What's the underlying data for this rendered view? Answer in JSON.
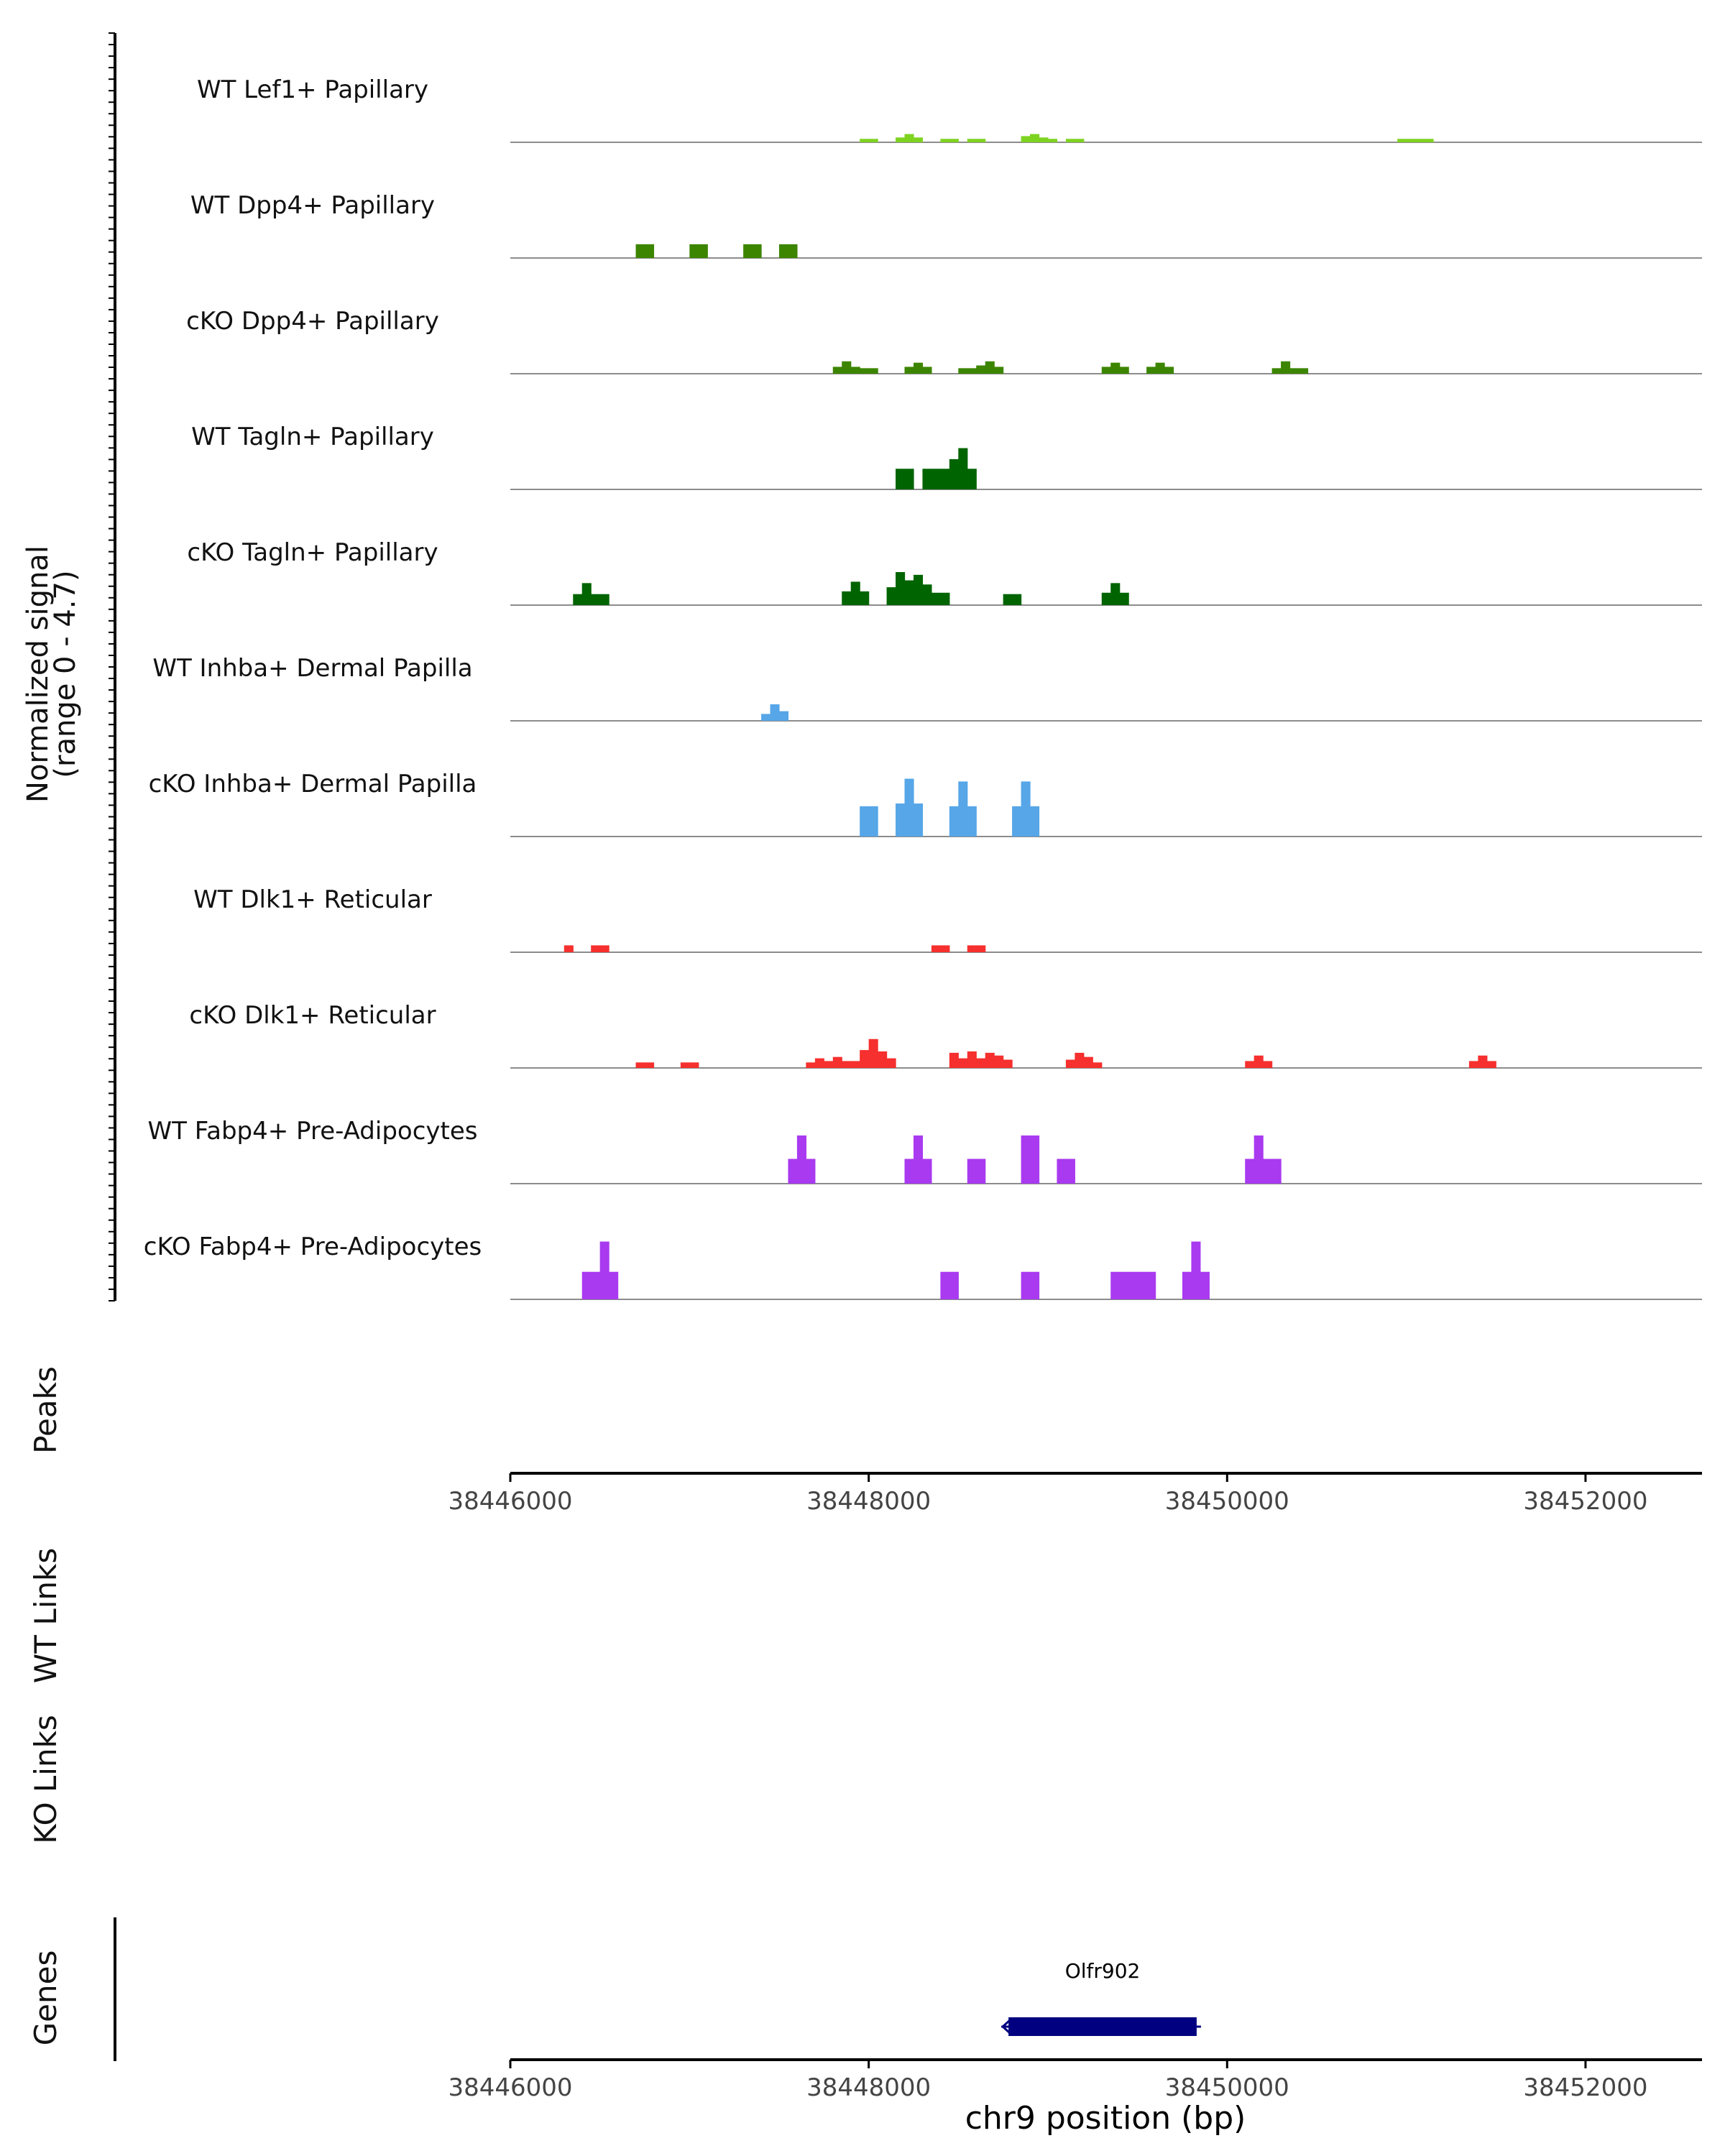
{
  "chart_data": {
    "type": "area",
    "x_unit": "bp",
    "xlim": [
      38446000,
      38452650
    ],
    "x_ticks": [
      38446000,
      38448000,
      38450000,
      38452000
    ],
    "x_tick_labels": [
      "38446000",
      "38448000",
      "38450000",
      "38452000"
    ],
    "xlabel": "chr9 position (bp)",
    "ylabel_line1": "Normalized signal",
    "ylabel_line2": "(range 0 - 4.7)",
    "ylim": [
      0,
      4.7
    ],
    "tracks": [
      {
        "name": "WT Lef1+ Papillary",
        "color": "#7ED321",
        "bins": [
          [
            38447950,
            38448050,
            0.25
          ],
          [
            38448150,
            38448200,
            0.35
          ],
          [
            38448200,
            38448250,
            0.6
          ],
          [
            38448250,
            38448300,
            0.35
          ],
          [
            38448400,
            38448500,
            0.25
          ],
          [
            38448550,
            38448650,
            0.25
          ],
          [
            38448850,
            38448900,
            0.45
          ],
          [
            38448900,
            38448950,
            0.6
          ],
          [
            38448950,
            38449000,
            0.35
          ],
          [
            38449000,
            38449050,
            0.25
          ],
          [
            38449100,
            38449200,
            0.25
          ],
          [
            38450950,
            38451050,
            0.25
          ],
          [
            38451050,
            38451150,
            0.25
          ]
        ]
      },
      {
        "name": "WT Dpp4+ Papillary",
        "color": "#3C8500",
        "bins": [
          [
            38446700,
            38446800,
            1.0
          ],
          [
            38447000,
            38447100,
            1.0
          ],
          [
            38447300,
            38447400,
            1.0
          ],
          [
            38447500,
            38447600,
            1.0
          ]
        ]
      },
      {
        "name": "cKO Dpp4+ Papillary",
        "color": "#3C8500",
        "bins": [
          [
            38447800,
            38447850,
            0.5
          ],
          [
            38447850,
            38447900,
            0.9
          ],
          [
            38447900,
            38447950,
            0.5
          ],
          [
            38447950,
            38448050,
            0.4
          ],
          [
            38448200,
            38448250,
            0.5
          ],
          [
            38448250,
            38448300,
            0.8
          ],
          [
            38448300,
            38448350,
            0.5
          ],
          [
            38448500,
            38448600,
            0.4
          ],
          [
            38448600,
            38448650,
            0.6
          ],
          [
            38448650,
            38448700,
            0.9
          ],
          [
            38448700,
            38448750,
            0.5
          ],
          [
            38449300,
            38449350,
            0.5
          ],
          [
            38449350,
            38449400,
            0.8
          ],
          [
            38449400,
            38449450,
            0.5
          ],
          [
            38449550,
            38449600,
            0.5
          ],
          [
            38449600,
            38449650,
            0.8
          ],
          [
            38449650,
            38449700,
            0.5
          ],
          [
            38450250,
            38450300,
            0.4
          ],
          [
            38450300,
            38450350,
            0.9
          ],
          [
            38450350,
            38450450,
            0.4
          ]
        ]
      },
      {
        "name": "WT Tagln+ Papillary",
        "color": "#006400",
        "bins": [
          [
            38448150,
            38448250,
            1.5
          ],
          [
            38448300,
            38448400,
            1.5
          ],
          [
            38448400,
            38448450,
            1.5
          ],
          [
            38448450,
            38448500,
            2.2
          ],
          [
            38448500,
            38448550,
            3.0
          ],
          [
            38448550,
            38448600,
            1.5
          ]
        ]
      },
      {
        "name": "cKO Tagln+ Papillary",
        "color": "#006400",
        "bins": [
          [
            38446350,
            38446400,
            0.8
          ],
          [
            38446400,
            38446450,
            1.6
          ],
          [
            38446450,
            38446550,
            0.8
          ],
          [
            38447850,
            38447900,
            1.0
          ],
          [
            38447900,
            38447950,
            1.7
          ],
          [
            38447950,
            38448000,
            1.0
          ],
          [
            38448100,
            38448150,
            1.3
          ],
          [
            38448150,
            38448200,
            2.4
          ],
          [
            38448200,
            38448250,
            1.8
          ],
          [
            38448250,
            38448300,
            2.2
          ],
          [
            38448300,
            38448350,
            1.5
          ],
          [
            38448350,
            38448400,
            0.9
          ],
          [
            38448400,
            38448450,
            0.9
          ],
          [
            38448750,
            38448850,
            0.8
          ],
          [
            38449300,
            38449350,
            0.9
          ],
          [
            38449350,
            38449400,
            1.6
          ],
          [
            38449400,
            38449450,
            0.9
          ]
        ]
      },
      {
        "name": "WT Inhba+ Dermal Papilla",
        "color": "#56A6E8",
        "bins": [
          [
            38447400,
            38447450,
            0.5
          ],
          [
            38447450,
            38447500,
            1.2
          ],
          [
            38447500,
            38447550,
            0.7
          ]
        ]
      },
      {
        "name": "cKO Inhba+ Dermal Papilla",
        "color": "#56A6E8",
        "bins": [
          [
            38447950,
            38448050,
            2.2
          ],
          [
            38448150,
            38448200,
            2.4
          ],
          [
            38448200,
            38448250,
            4.2
          ],
          [
            38448250,
            38448300,
            2.4
          ],
          [
            38448450,
            38448500,
            2.2
          ],
          [
            38448500,
            38448550,
            4.0
          ],
          [
            38448550,
            38448600,
            2.2
          ],
          [
            38448800,
            38448850,
            2.2
          ],
          [
            38448850,
            38448900,
            4.0
          ],
          [
            38448900,
            38448950,
            2.2
          ]
        ]
      },
      {
        "name": "WT Dlk1+ Reticular",
        "color": "#F5302E",
        "bins": [
          [
            38446300,
            38446350,
            0.5
          ],
          [
            38446450,
            38446550,
            0.5
          ],
          [
            38448350,
            38448450,
            0.5
          ],
          [
            38448550,
            38448650,
            0.5
          ]
        ]
      },
      {
        "name": "cKO Dlk1+ Reticular",
        "color": "#F5302E",
        "bins": [
          [
            38446700,
            38446800,
            0.4
          ],
          [
            38446950,
            38447050,
            0.4
          ],
          [
            38447650,
            38447700,
            0.4
          ],
          [
            38447700,
            38447750,
            0.7
          ],
          [
            38447750,
            38447800,
            0.5
          ],
          [
            38447800,
            38447850,
            0.8
          ],
          [
            38447850,
            38447900,
            0.5
          ],
          [
            38447900,
            38447950,
            0.5
          ],
          [
            38447950,
            38448000,
            1.3
          ],
          [
            38448000,
            38448050,
            2.1
          ],
          [
            38448050,
            38448100,
            1.2
          ],
          [
            38448100,
            38448150,
            0.7
          ],
          [
            38448450,
            38448500,
            1.1
          ],
          [
            38448500,
            38448550,
            0.7
          ],
          [
            38448550,
            38448600,
            1.2
          ],
          [
            38448600,
            38448650,
            0.7
          ],
          [
            38448650,
            38448700,
            1.1
          ],
          [
            38448700,
            38448750,
            0.9
          ],
          [
            38448750,
            38448800,
            0.6
          ],
          [
            38449100,
            38449150,
            0.6
          ],
          [
            38449150,
            38449200,
            1.1
          ],
          [
            38449200,
            38449250,
            0.8
          ],
          [
            38449250,
            38449300,
            0.4
          ],
          [
            38450100,
            38450150,
            0.5
          ],
          [
            38450150,
            38450200,
            0.9
          ],
          [
            38450200,
            38450250,
            0.5
          ],
          [
            38451350,
            38451400,
            0.5
          ],
          [
            38451400,
            38451450,
            0.9
          ],
          [
            38451450,
            38451500,
            0.5
          ]
        ]
      },
      {
        "name": "WT Fabp4+ Pre-Adipocytes",
        "color": "#A93AF0",
        "bins": [
          [
            38447550,
            38447600,
            1.8
          ],
          [
            38447600,
            38447650,
            3.5
          ],
          [
            38447650,
            38447700,
            1.8
          ],
          [
            38448200,
            38448250,
            1.8
          ],
          [
            38448250,
            38448300,
            3.5
          ],
          [
            38448300,
            38448350,
            1.8
          ],
          [
            38448550,
            38448650,
            1.8
          ],
          [
            38448850,
            38448950,
            3.5
          ],
          [
            38449050,
            38449150,
            1.8
          ],
          [
            38450100,
            38450150,
            1.8
          ],
          [
            38450150,
            38450200,
            3.5
          ],
          [
            38450200,
            38450300,
            1.8
          ]
        ]
      },
      {
        "name": "cKO Fabp4+ Pre-Adipocytes",
        "color": "#A93AF0",
        "bins": [
          [
            38446400,
            38446450,
            2.0
          ],
          [
            38446450,
            38446500,
            2.0
          ],
          [
            38446500,
            38446550,
            4.2
          ],
          [
            38446550,
            38446600,
            2.0
          ],
          [
            38448400,
            38448500,
            2.0
          ],
          [
            38448850,
            38448950,
            2.0
          ],
          [
            38449350,
            38449450,
            2.0
          ],
          [
            38449450,
            38449500,
            2.0
          ],
          [
            38449500,
            38449600,
            2.0
          ],
          [
            38449750,
            38449800,
            2.0
          ],
          [
            38449800,
            38449850,
            4.2
          ],
          [
            38449850,
            38449900,
            2.0
          ]
        ]
      }
    ],
    "panels": {
      "peaks": "Peaks",
      "wt_links": "WT Links",
      "ko_links": "KO Links",
      "genes": "Genes"
    },
    "genes": [
      {
        "name": "Olfr902",
        "start": 38448780,
        "end": 38449830,
        "strand": "-",
        "color": "#000080"
      }
    ]
  }
}
